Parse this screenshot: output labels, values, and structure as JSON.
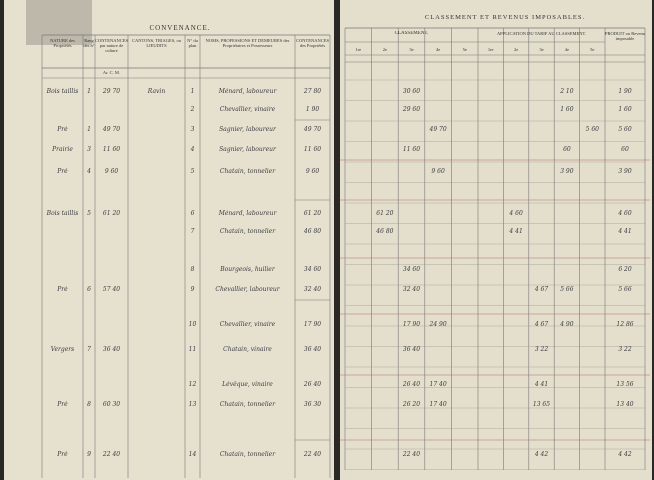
{
  "header": {
    "left_title": "CONVENANCE.",
    "right_title": "CLASSEMENT ET REVENUS IMPOSABLES."
  },
  "left_columns": [
    "NATURE des Propriétés",
    "Rang des n°",
    "CONTENANCES par nature de culture",
    "CANTONS, TRIAGES, ou LIEUDITS",
    "N° du plan",
    "NOMS, PROFESSIONS ET DEMEURES des Propriétaires et Possesseurs",
    "CONTENANCES des Propriétés"
  ],
  "right_groups": [
    "CLASSEMENT.",
    "APPLICATION DU TARIF AU CLASSEMENT.",
    "PRODUIT ou Revenu imposable"
  ],
  "classes": [
    "1re",
    "2e",
    "3e",
    "4e",
    "5e"
  ],
  "units": "Ar. C. M.",
  "left_rows": [
    [
      "Bois taillis",
      "1",
      "29 70",
      "Ravin",
      "1",
      "Ménard, laboureur",
      "27 80"
    ],
    [
      null,
      null,
      null,
      null,
      "2",
      "Chevallier, vinaire",
      "1 90"
    ],
    [
      "Pré",
      "1",
      "49 70",
      null,
      "3",
      "Sagnier, laboureur",
      "49 70"
    ],
    [
      "Prairie",
      "3",
      "11 60",
      null,
      "4",
      "Sagnier, laboureur",
      "11 60"
    ],
    [
      "Pré",
      "4",
      "9 60",
      null,
      "5",
      "Chatain, tonnelier",
      "9 60"
    ],
    [
      "Bois taillis",
      "5",
      "61 20",
      null,
      "6",
      "Ménard, laboureur",
      "61 20"
    ],
    [
      null,
      null,
      null,
      null,
      "7",
      "Chatain, tonnelier",
      "46 80"
    ],
    [
      null,
      null,
      null,
      null,
      "8",
      "Bourgeois, huilier",
      "34 60"
    ],
    [
      "Pré",
      "6",
      "57 40",
      null,
      "9",
      "Chevallier, laboureur",
      "32 40"
    ],
    [
      null,
      null,
      null,
      null,
      "10",
      "Chevallier, vinaire",
      "17 90"
    ],
    [
      "Vergers",
      "7",
      "36 40",
      null,
      "11",
      "Chatain, vinaire",
      "36 40"
    ],
    [
      null,
      null,
      null,
      null,
      "12",
      "Lévêque, vinaire",
      "26 40"
    ],
    [
      "Pré",
      "8",
      "60 30",
      null,
      "13",
      "Chatain, tonnelier",
      "36 30"
    ],
    [
      "Pré",
      "9",
      "22 40",
      null,
      "14",
      "Chatain, tonnelier",
      "22 40"
    ]
  ],
  "right_rows": [
    [
      null,
      null,
      "30 60",
      null,
      null,
      null,
      null,
      null,
      "2 10",
      null,
      "1 90"
    ],
    [
      null,
      null,
      "29 60",
      null,
      null,
      null,
      null,
      null,
      "1 60",
      null,
      "1 60"
    ],
    [
      null,
      null,
      null,
      "49 70",
      null,
      null,
      null,
      null,
      null,
      "5 60",
      "5 60"
    ],
    [
      null,
      null,
      "11 60",
      null,
      null,
      null,
      null,
      null,
      "60",
      null,
      "60"
    ],
    [
      null,
      null,
      null,
      "9 60",
      null,
      null,
      null,
      null,
      "3 90",
      null,
      "3 90"
    ],
    [
      null,
      "61 20",
      null,
      null,
      null,
      null,
      "4 60",
      null,
      null,
      null,
      "4 60"
    ],
    [
      null,
      "46 80",
      null,
      null,
      null,
      null,
      "4 41",
      null,
      null,
      null,
      "4 41"
    ],
    [
      null,
      null,
      "34 60",
      null,
      null,
      null,
      null,
      null,
      null,
      null,
      "6 20"
    ],
    [
      null,
      null,
      "32 40",
      null,
      null,
      null,
      null,
      "4 67",
      "5 66",
      null,
      "5 66"
    ],
    [
      null,
      null,
      "17 90",
      "24 90",
      null,
      null,
      null,
      "4 67",
      "4 90",
      null,
      "12 86"
    ],
    [
      null,
      null,
      "36 40",
      null,
      null,
      null,
      null,
      "3 22",
      null,
      null,
      "3 22"
    ],
    [
      null,
      null,
      "26 40",
      "17 40",
      null,
      null,
      null,
      "4 41",
      null,
      null,
      "13 56"
    ],
    [
      null,
      null,
      "26 20",
      "17 40",
      null,
      null,
      null,
      "13 65",
      null,
      null,
      "13 40"
    ],
    [
      null,
      null,
      "22 40",
      null,
      null,
      null,
      null,
      "4 42",
      null,
      null,
      "4 42"
    ]
  ]
}
